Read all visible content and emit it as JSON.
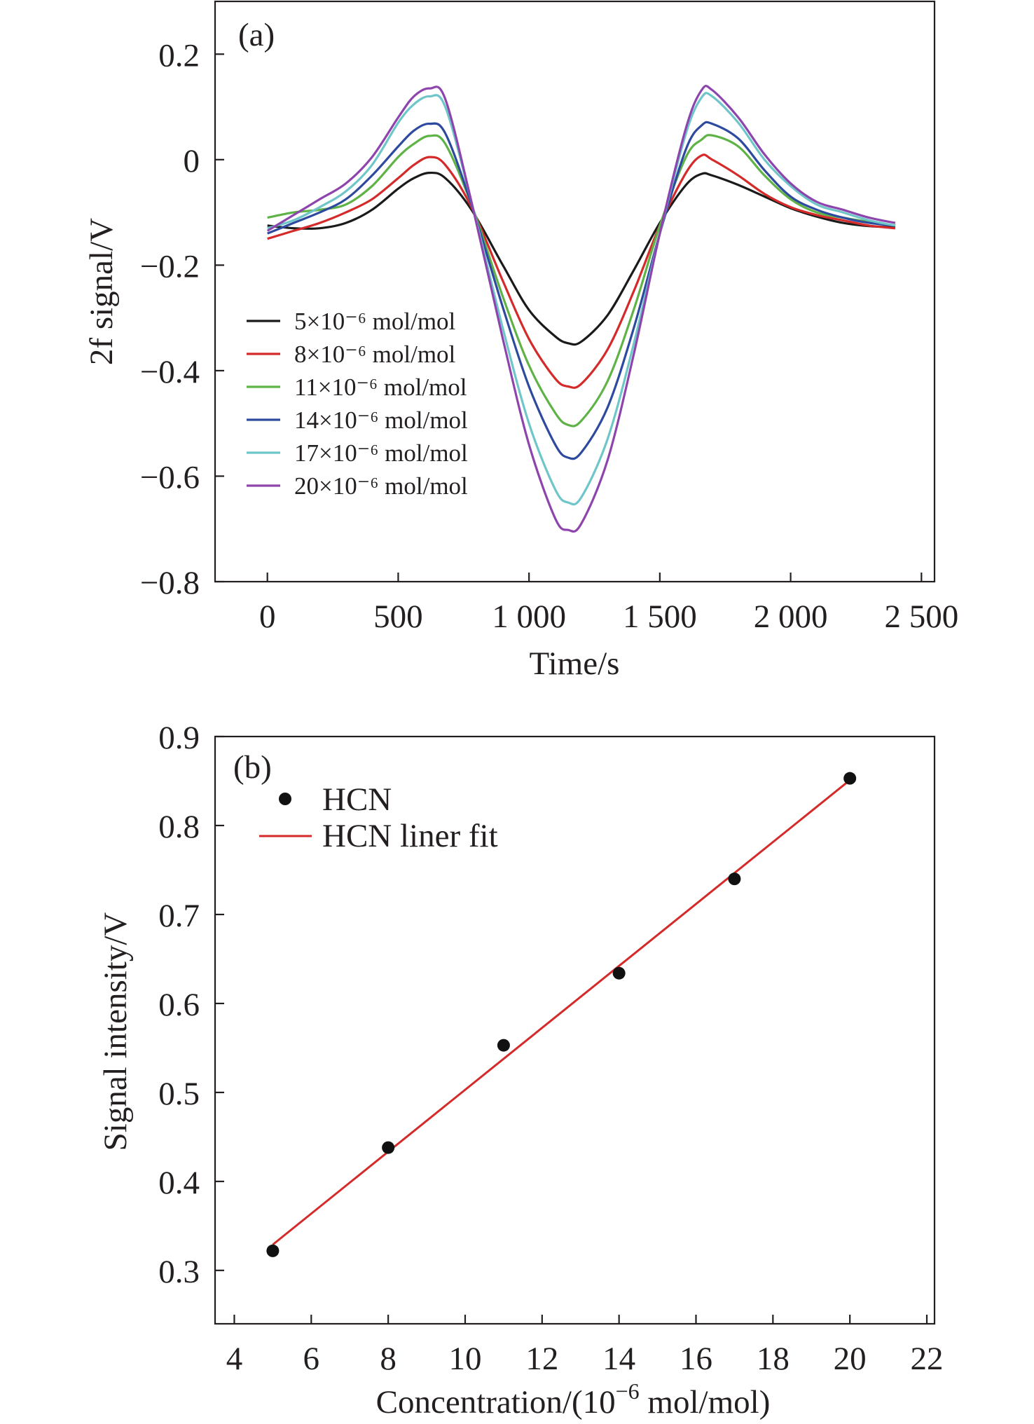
{
  "chart_data": [
    {
      "panel": "(a)",
      "type": "line",
      "xlabel": "Time/s",
      "ylabel": "2f signal/V",
      "xlim": [
        -200,
        2550
      ],
      "ylim": [
        -0.8,
        0.3
      ],
      "x_ticks": [
        0,
        500,
        1000,
        1500,
        2000,
        2500
      ],
      "x_tick_labels": [
        "0",
        "500",
        "1 000",
        "1 500",
        "2 000",
        "2 500"
      ],
      "y_ticks": [
        0.2,
        0,
        -0.2,
        -0.4,
        -0.6,
        -0.8
      ],
      "y_tick_labels": [
        "0.2",
        "0",
        "−0.2",
        "−0.4",
        "−0.6",
        "−0.8"
      ],
      "legend_position": "center-left",
      "series": [
        {
          "name": "5×10⁻⁶ mol/mol",
          "color": "#1a1a1a",
          "x": [
            0,
            100,
            200,
            300,
            400,
            500,
            560,
            620,
            680,
            780,
            900,
            1000,
            1100,
            1150,
            1200,
            1300,
            1400,
            1500,
            1600,
            1660,
            1700,
            1800,
            1900,
            2000,
            2100,
            2200,
            2300,
            2400
          ],
          "values": [
            -0.125,
            -0.13,
            -0.13,
            -0.12,
            -0.095,
            -0.055,
            -0.035,
            -0.025,
            -0.035,
            -0.095,
            -0.2,
            -0.285,
            -0.335,
            -0.348,
            -0.345,
            -0.295,
            -0.21,
            -0.12,
            -0.048,
            -0.027,
            -0.03,
            -0.048,
            -0.07,
            -0.092,
            -0.108,
            -0.12,
            -0.126,
            -0.128
          ]
        },
        {
          "name": "8×10⁻⁶ mol/mol",
          "color": "#d42a2a",
          "x": [
            0,
            100,
            200,
            300,
            400,
            500,
            560,
            620,
            680,
            780,
            900,
            1000,
            1100,
            1150,
            1200,
            1300,
            1400,
            1500,
            1600,
            1660,
            1700,
            1800,
            1900,
            2000,
            2100,
            2200,
            2300,
            2400
          ],
          "values": [
            -0.15,
            -0.135,
            -0.12,
            -0.1,
            -0.075,
            -0.035,
            -0.01,
            0.005,
            -0.01,
            -0.09,
            -0.23,
            -0.34,
            -0.415,
            -0.43,
            -0.425,
            -0.36,
            -0.25,
            -0.125,
            -0.025,
            0.008,
            0.0,
            -0.03,
            -0.065,
            -0.09,
            -0.105,
            -0.115,
            -0.125,
            -0.13
          ]
        },
        {
          "name": "11×10⁻⁶ mol/mol",
          "color": "#5fb346",
          "x": [
            0,
            100,
            200,
            300,
            400,
            500,
            560,
            620,
            680,
            780,
            900,
            1000,
            1100,
            1150,
            1200,
            1300,
            1400,
            1500,
            1600,
            1660,
            1700,
            1800,
            1900,
            2000,
            2100,
            2200,
            2300,
            2400
          ],
          "values": [
            -0.11,
            -0.1,
            -0.095,
            -0.085,
            -0.05,
            0.005,
            0.03,
            0.045,
            0.03,
            -0.085,
            -0.26,
            -0.39,
            -0.48,
            -0.503,
            -0.495,
            -0.42,
            -0.285,
            -0.125,
            0.005,
            0.038,
            0.046,
            0.025,
            -0.03,
            -0.075,
            -0.1,
            -0.11,
            -0.118,
            -0.125
          ]
        },
        {
          "name": "14×10⁻⁶ mol/mol",
          "color": "#2e4a9e",
          "x": [
            0,
            100,
            200,
            300,
            400,
            500,
            560,
            620,
            680,
            780,
            900,
            1000,
            1100,
            1150,
            1200,
            1300,
            1400,
            1500,
            1600,
            1660,
            1700,
            1800,
            1900,
            2000,
            2100,
            2200,
            2300,
            2400
          ],
          "values": [
            -0.14,
            -0.12,
            -0.1,
            -0.075,
            -0.03,
            0.025,
            0.055,
            0.068,
            0.05,
            -0.085,
            -0.28,
            -0.43,
            -0.54,
            -0.565,
            -0.555,
            -0.47,
            -0.32,
            -0.14,
            0.02,
            0.065,
            0.068,
            0.04,
            -0.02,
            -0.07,
            -0.095,
            -0.11,
            -0.12,
            -0.125
          ]
        },
        {
          "name": "17×10⁻⁶ mol/mol",
          "color": "#6ec6c9",
          "x": [
            0,
            100,
            200,
            300,
            400,
            500,
            560,
            620,
            680,
            780,
            900,
            1000,
            1100,
            1150,
            1200,
            1300,
            1400,
            1500,
            1600,
            1660,
            1700,
            1800,
            1900,
            2000,
            2100,
            2200,
            2300,
            2400
          ],
          "values": [
            -0.13,
            -0.115,
            -0.09,
            -0.06,
            -0.01,
            0.07,
            0.105,
            0.12,
            0.1,
            -0.08,
            -0.32,
            -0.5,
            -0.625,
            -0.65,
            -0.64,
            -0.53,
            -0.35,
            -0.14,
            0.05,
            0.118,
            0.12,
            0.07,
            0.0,
            -0.05,
            -0.085,
            -0.1,
            -0.115,
            -0.125
          ]
        },
        {
          "name": "20×10⁻⁶ mol/mol",
          "color": "#8e44ad",
          "x": [
            0,
            100,
            200,
            300,
            400,
            500,
            560,
            620,
            680,
            780,
            900,
            1000,
            1100,
            1150,
            1200,
            1300,
            1400,
            1500,
            1600,
            1660,
            1700,
            1800,
            1900,
            2000,
            2100,
            2200,
            2300,
            2400
          ],
          "values": [
            -0.135,
            -0.105,
            -0.075,
            -0.045,
            0.005,
            0.08,
            0.12,
            0.135,
            0.115,
            -0.08,
            -0.34,
            -0.54,
            -0.68,
            -0.702,
            -0.69,
            -0.57,
            -0.37,
            -0.14,
            0.06,
            0.132,
            0.132,
            0.08,
            0.01,
            -0.045,
            -0.08,
            -0.095,
            -0.11,
            -0.12
          ]
        }
      ]
    },
    {
      "panel": "(b)",
      "type": "scatter",
      "xlabel": "Concentration/(10",
      "xlabel_sup": "−6",
      "xlabel_tail": " mol/mol)",
      "ylabel": "Signal intensity/V",
      "xlim": [
        3.5,
        22.2
      ],
      "ylim": [
        0.24,
        0.9
      ],
      "x_ticks": [
        4,
        6,
        8,
        10,
        12,
        14,
        16,
        18,
        20,
        22
      ],
      "x_tick_labels": [
        "4",
        "6",
        "8",
        "10",
        "12",
        "14",
        "16",
        "18",
        "20",
        "22"
      ],
      "y_ticks": [
        0.3,
        0.4,
        0.5,
        0.6,
        0.7,
        0.8,
        0.9
      ],
      "y_tick_labels": [
        "0.3",
        "0.4",
        "0.5",
        "0.6",
        "0.7",
        "0.8",
        "0.9"
      ],
      "legend_position": "top-left",
      "series": [
        {
          "name": "HCN",
          "kind": "scatter",
          "color": "#111111",
          "x": [
            5,
            8,
            11,
            14,
            17,
            20
          ],
          "values": [
            0.322,
            0.438,
            0.553,
            0.634,
            0.74,
            0.853
          ]
        },
        {
          "name": "HCN liner fit",
          "kind": "line",
          "color": "#d42a2a",
          "x": [
            5,
            20
          ],
          "values": [
            0.329,
            0.851
          ]
        }
      ]
    }
  ]
}
